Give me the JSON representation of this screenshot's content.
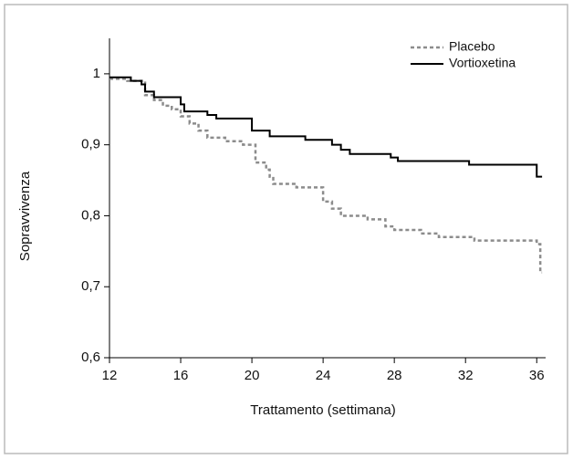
{
  "chart_data": {
    "type": "step",
    "xlabel": "Trattamento (settimana)",
    "ylabel": "Sopravvivenza",
    "xlim": [
      12,
      36.5
    ],
    "ylim": [
      0.6,
      1.05
    ],
    "xticks": [
      12,
      16,
      20,
      24,
      28,
      32,
      36
    ],
    "yticks": [
      {
        "value": 0.6,
        "label": "0,6"
      },
      {
        "value": 0.7,
        "label": "0,7"
      },
      {
        "value": 0.8,
        "label": "0,8"
      },
      {
        "value": 0.9,
        "label": "0,9"
      },
      1
    ],
    "legend": "upper right",
    "series": [
      {
        "name": "Placebo",
        "color": "#8c8c8c",
        "dashed": true,
        "x": [
          12,
          13,
          14,
          14.5,
          15,
          15.5,
          16,
          16.5,
          17,
          17.5,
          18.5,
          19.5,
          20.2,
          20.8,
          21,
          21.2,
          22.5,
          24,
          24.5,
          25,
          26.5,
          27.5,
          28,
          29.5,
          30.5,
          32.5,
          36,
          36.2,
          36.3
        ],
        "values": [
          0.993,
          0.99,
          0.97,
          0.963,
          0.955,
          0.95,
          0.94,
          0.93,
          0.92,
          0.91,
          0.905,
          0.9,
          0.875,
          0.865,
          0.855,
          0.845,
          0.84,
          0.82,
          0.81,
          0.8,
          0.795,
          0.785,
          0.78,
          0.775,
          0.77,
          0.765,
          0.76,
          0.72,
          0.72
        ]
      },
      {
        "name": "Vortioxetina",
        "color": "#000000",
        "dashed": false,
        "x": [
          12,
          13.2,
          13.8,
          14,
          14.5,
          16,
          16.2,
          17.5,
          18,
          20,
          21,
          23,
          24.5,
          25,
          25.5,
          27.8,
          28.2,
          32.2,
          36,
          36.3
        ],
        "values": [
          0.995,
          0.99,
          0.985,
          0.975,
          0.967,
          0.957,
          0.947,
          0.942,
          0.937,
          0.92,
          0.912,
          0.907,
          0.9,
          0.893,
          0.887,
          0.882,
          0.877,
          0.872,
          0.855,
          0.855
        ]
      }
    ]
  }
}
